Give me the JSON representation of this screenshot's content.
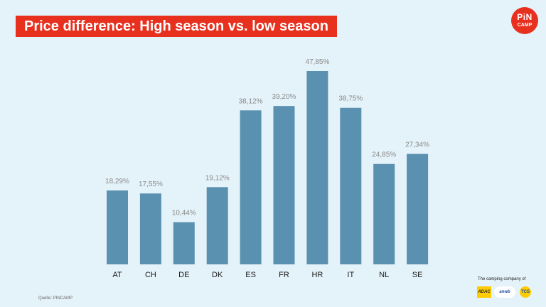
{
  "header": {
    "title": "Price difference: High season vs. low season",
    "logo_line1": "PiN",
    "logo_line2": "CAMP"
  },
  "footer": {
    "source": "Quelle: PINCAMP",
    "company_text": "The camping company of",
    "partners": {
      "adac": "ADAC",
      "anwb": "anwb",
      "tcs": "TCS"
    }
  },
  "colors": {
    "background": "#e4f2f9",
    "bar": "#5a91b0",
    "banner": "#e8301f",
    "value_label": "#8a8a8a",
    "tick_label": "#1a1a1a"
  },
  "chart_data": {
    "type": "bar",
    "title": "Price difference: High season vs. low season",
    "xlabel": "",
    "ylabel": "",
    "categories": [
      "AT",
      "CH",
      "DE",
      "DK",
      "ES",
      "FR",
      "HR",
      "IT",
      "NL",
      "SE"
    ],
    "values": [
      18.29,
      17.55,
      10.44,
      19.12,
      38.12,
      39.2,
      47.85,
      38.75,
      24.85,
      27.34
    ],
    "value_labels": [
      "18,29%",
      "17,55%",
      "10,44%",
      "19,12%",
      "38,12%",
      "39,20%",
      "47,85%",
      "38,75%",
      "24,85%",
      "27,34%"
    ],
    "ylim": [
      0,
      47.85
    ],
    "grid": false,
    "legend": "none"
  }
}
